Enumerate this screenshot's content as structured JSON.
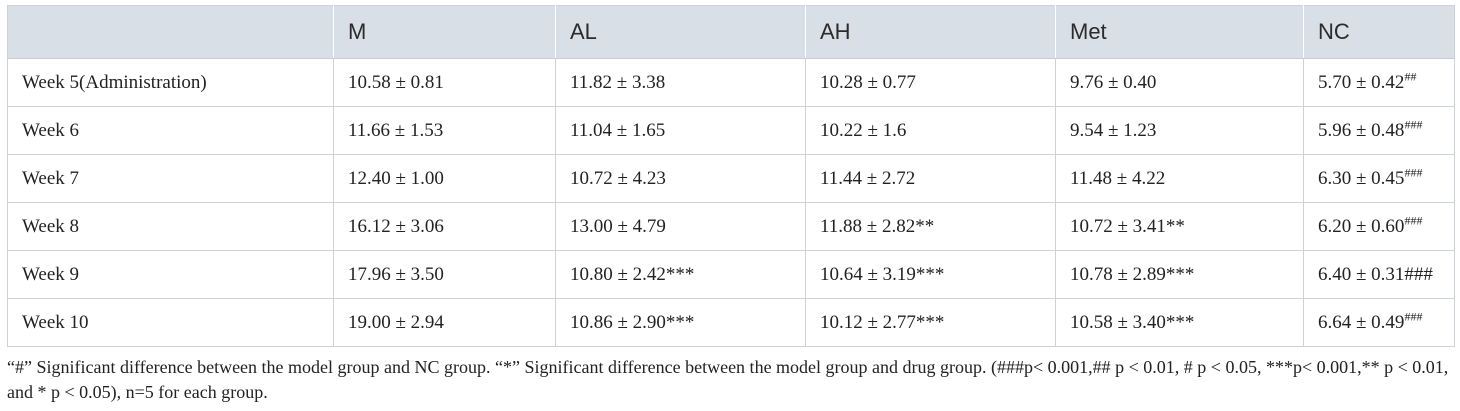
{
  "table": {
    "headers": [
      "",
      "M",
      "AL",
      "AH",
      "Met",
      "NC"
    ],
    "rows": [
      {
        "label": "Week 5(Administration)",
        "cells": [
          {
            "text": "10.58 ± 0.81",
            "sup": ""
          },
          {
            "text": "11.82 ± 3.38",
            "sup": ""
          },
          {
            "text": "10.28 ± 0.77",
            "sup": ""
          },
          {
            "text": "9.76 ± 0.40",
            "sup": ""
          },
          {
            "text": "5.70 ± 0.42",
            "sup": "##"
          }
        ]
      },
      {
        "label": "Week 6",
        "cells": [
          {
            "text": "11.66 ± 1.53",
            "sup": ""
          },
          {
            "text": "11.04 ± 1.65",
            "sup": ""
          },
          {
            "text": "10.22 ± 1.6",
            "sup": ""
          },
          {
            "text": "9.54 ± 1.23",
            "sup": ""
          },
          {
            "text": "5.96 ± 0.48",
            "sup": "###"
          }
        ]
      },
      {
        "label": "Week 7",
        "cells": [
          {
            "text": "12.40 ± 1.00",
            "sup": ""
          },
          {
            "text": "10.72 ± 4.23",
            "sup": ""
          },
          {
            "text": "11.44 ± 2.72",
            "sup": ""
          },
          {
            "text": "11.48 ± 4.22",
            "sup": ""
          },
          {
            "text": "6.30 ± 0.45",
            "sup": "###"
          }
        ]
      },
      {
        "label": "Week 8",
        "cells": [
          {
            "text": "16.12 ± 3.06",
            "sup": ""
          },
          {
            "text": "13.00 ± 4.79",
            "sup": ""
          },
          {
            "text": "11.88 ± 2.82**",
            "sup": ""
          },
          {
            "text": "10.72 ± 3.41**",
            "sup": ""
          },
          {
            "text": "6.20 ± 0.60",
            "sup": "###"
          }
        ]
      },
      {
        "label": "Week 9",
        "cells": [
          {
            "text": "17.96 ± 3.50",
            "sup": ""
          },
          {
            "text": "10.80 ± 2.42***",
            "sup": ""
          },
          {
            "text": "10.64 ± 3.19***",
            "sup": ""
          },
          {
            "text": "10.78 ± 2.89***",
            "sup": ""
          },
          {
            "text": "6.40 ± 0.31###",
            "sup": ""
          }
        ]
      },
      {
        "label": "Week 10",
        "cells": [
          {
            "text": "19.00 ± 2.94",
            "sup": ""
          },
          {
            "text": "10.86 ± 2.90***",
            "sup": ""
          },
          {
            "text": "10.12 ± 2.77***",
            "sup": ""
          },
          {
            "text": "10.58 ± 3.40***",
            "sup": ""
          },
          {
            "text": "6.64 ± 0.49",
            "sup": "###"
          }
        ]
      }
    ]
  },
  "footnote": {
    "line1": "“#” Significant difference between the model group and NC group. “*” Significant difference between the model group and drug group. (###p< 0.001,## p < 0.01, # p < 0.05, ***p< 0.001,** p < 0.01,",
    "line2": "and * p < 0.05), n=5 for each group."
  }
}
